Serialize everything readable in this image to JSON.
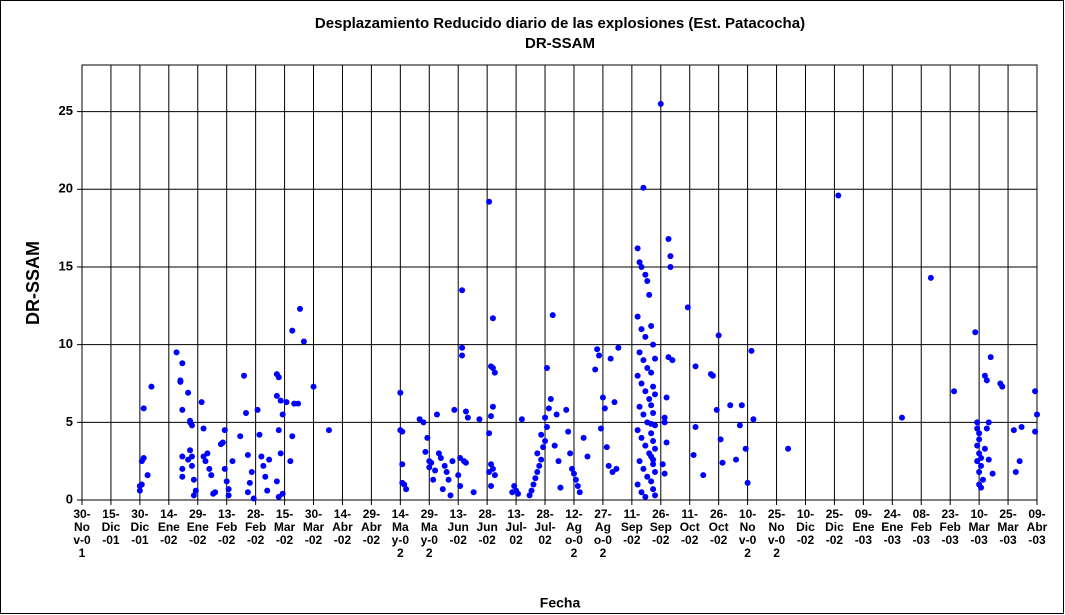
{
  "chart_data": {
    "type": "scatter",
    "title": "Desplazamiento Reducido diario de las explosiones (Est. Patacocha)",
    "subtitle": "DR-SSAM",
    "x_label": "Fecha",
    "y_label": "DR-SSAM",
    "xlim": [
      0,
      495
    ],
    "xticks": [
      {
        "value": 0,
        "label": "30-Nov-01"
      },
      {
        "value": 15,
        "label": "15-Dic-01"
      },
      {
        "value": 30,
        "label": "30-Dic-01"
      },
      {
        "value": 45,
        "label": "14-Ene-02"
      },
      {
        "value": 60,
        "label": "29-Ene-02"
      },
      {
        "value": 75,
        "label": "13-Feb-02"
      },
      {
        "value": 90,
        "label": "28-Feb-02"
      },
      {
        "value": 105,
        "label": "15-Mar-02"
      },
      {
        "value": 120,
        "label": "30-Mar-02"
      },
      {
        "value": 135,
        "label": "14-Abr-02"
      },
      {
        "value": 150,
        "label": "29-Abr-02"
      },
      {
        "value": 165,
        "label": "14-May-02"
      },
      {
        "value": 180,
        "label": "29-May-02"
      },
      {
        "value": 195,
        "label": "13-Jun-02"
      },
      {
        "value": 210,
        "label": "28-Jun-02"
      },
      {
        "value": 225,
        "label": "13-Jul-02"
      },
      {
        "value": 240,
        "label": "28-Jul-02"
      },
      {
        "value": 255,
        "label": "12-Ago-02"
      },
      {
        "value": 270,
        "label": "27-Ago-02"
      },
      {
        "value": 285,
        "label": "11-Sep-02"
      },
      {
        "value": 300,
        "label": "26-Sep-02"
      },
      {
        "value": 315,
        "label": "11-Oct-02"
      },
      {
        "value": 330,
        "label": "26-Oct-02"
      },
      {
        "value": 345,
        "label": "10-Nov-02"
      },
      {
        "value": 360,
        "label": "25-Nov-02"
      },
      {
        "value": 375,
        "label": "10-Dic-02"
      },
      {
        "value": 390,
        "label": "25-Dic-02"
      },
      {
        "value": 405,
        "label": "09-Ene-03"
      },
      {
        "value": 420,
        "label": "24-Ene-03"
      },
      {
        "value": 435,
        "label": "08-Feb-03"
      },
      {
        "value": 450,
        "label": "23-Feb-03"
      },
      {
        "value": 465,
        "label": "10-Mar-03"
      },
      {
        "value": 480,
        "label": "25-Mar-03"
      },
      {
        "value": 495,
        "label": "09-Abr-03"
      }
    ],
    "ylim": [
      0,
      28
    ],
    "yticks": [
      0,
      5,
      10,
      15,
      20,
      25
    ],
    "grid": true,
    "series": [
      {
        "color": "#0000ff",
        "x": [
          30,
          30,
          31,
          31,
          32,
          32,
          34,
          36,
          49,
          51,
          51,
          52,
          52,
          52,
          52,
          52,
          55,
          56,
          56,
          57,
          57,
          55,
          56,
          57,
          58,
          58,
          59,
          62,
          63,
          63,
          64,
          65,
          66,
          67,
          68,
          69,
          72,
          73,
          74,
          74,
          75,
          76,
          76,
          78,
          82,
          84,
          85,
          86,
          86,
          87,
          88,
          89,
          91,
          92,
          93,
          94,
          95,
          96,
          97,
          101,
          102,
          101,
          103,
          104,
          102,
          103,
          101,
          102,
          104,
          106,
          109,
          110,
          109,
          108,
          113,
          115,
          112,
          120,
          128,
          165,
          165,
          166,
          166,
          166,
          167,
          168,
          175,
          177,
          178,
          179,
          180,
          180,
          181,
          182,
          183,
          184,
          185,
          186,
          187,
          188,
          189,
          190,
          191,
          192,
          193,
          197,
          197,
          197,
          199,
          200,
          196,
          198,
          199,
          195,
          196,
          203,
          206,
          211,
          213,
          212,
          213,
          214,
          213,
          212,
          211,
          212,
          213,
          211,
          214,
          212,
          223,
          224,
          225,
          226,
          228,
          232,
          233,
          234,
          235,
          236,
          237,
          238,
          236,
          239,
          240,
          238,
          241,
          240,
          242,
          243,
          241,
          244,
          246,
          245,
          247,
          248,
          251,
          252,
          253,
          254,
          255,
          256,
          257,
          258,
          260,
          262,
          267,
          268,
          266,
          274,
          278,
          270,
          276,
          271,
          269,
          272,
          273,
          275,
          277,
          291,
          288,
          289,
          290,
          292,
          293,
          294,
          288,
          290,
          292,
          289,
          291,
          293,
          288,
          290,
          292,
          294,
          289,
          291,
          293,
          288,
          290,
          292,
          294,
          289,
          291,
          293,
          288,
          290,
          292,
          295,
          296,
          297,
          295,
          296,
          297,
          295,
          296,
          297,
          295,
          296,
          297,
          295,
          296,
          297,
          295,
          296,
          297,
          295,
          296,
          300,
          304,
          305,
          305,
          304,
          306,
          303,
          302,
          302,
          303,
          301,
          302,
          314,
          318,
          318,
          317,
          322,
          326,
          327,
          330,
          329,
          331,
          332,
          336,
          339,
          341,
          342,
          344,
          345,
          347,
          348,
          366,
          392,
          425,
          440,
          452,
          463,
          464,
          464,
          465,
          465,
          464,
          465,
          466,
          464,
          466,
          465,
          467,
          465,
          466,
          468,
          469,
          471,
          470,
          469,
          468,
          470,
          472,
          476,
          477,
          483,
          484,
          486,
          487,
          494,
          495,
          494
        ],
        "values": [
          0.6,
          0.9,
          1.0,
          2.5,
          2.7,
          5.9,
          1.6,
          7.3,
          9.5,
          7.7,
          7.6,
          8.8,
          5.8,
          2.8,
          2.0,
          1.5,
          6.9,
          5.0,
          5.1,
          4.8,
          2.8,
          2.6,
          3.2,
          2.2,
          1.3,
          0.3,
          0.6,
          6.3,
          4.6,
          2.8,
          2.5,
          3.0,
          2.0,
          1.6,
          0.4,
          0.5,
          3.6,
          3.7,
          4.5,
          2.0,
          1.2,
          0.3,
          0.7,
          2.5,
          4.1,
          8.0,
          5.6,
          2.9,
          0.5,
          1.1,
          1.8,
          0.1,
          5.8,
          4.2,
          2.8,
          2.2,
          1.5,
          0.6,
          2.6,
          8.1,
          7.9,
          6.7,
          6.4,
          5.5,
          4.5,
          3.0,
          1.2,
          0.2,
          0.4,
          6.3,
          10.9,
          6.2,
          4.1,
          2.5,
          12.3,
          10.2,
          6.2,
          7.3,
          4.5,
          6.9,
          4.5,
          4.4,
          2.3,
          1.1,
          1.0,
          0.7,
          5.2,
          5.0,
          3.1,
          4.0,
          2.5,
          2.1,
          2.4,
          1.3,
          1.9,
          5.5,
          3.0,
          2.7,
          0.7,
          2.2,
          1.8,
          1.3,
          0.3,
          2.5,
          5.8,
          13.5,
          9.8,
          9.3,
          5.7,
          5.3,
          2.7,
          2.5,
          2.4,
          1.6,
          0.9,
          0.5,
          5.2,
          19.2,
          11.7,
          8.6,
          8.5,
          8.2,
          6.0,
          5.4,
          4.3,
          2.3,
          2.0,
          1.8,
          1.6,
          0.9,
          0.5,
          0.9,
          0.6,
          0.4,
          5.2,
          0.3,
          0.6,
          1.0,
          1.4,
          1.8,
          2.2,
          2.6,
          3.0,
          3.4,
          3.8,
          4.2,
          4.7,
          5.3,
          5.9,
          6.5,
          8.5,
          11.9,
          5.5,
          3.5,
          2.5,
          0.8,
          5.8,
          4.4,
          3.0,
          2.0,
          1.7,
          1.3,
          0.9,
          0.5,
          4.0,
          2.8,
          9.7,
          9.3,
          8.4,
          9.1,
          9.8,
          6.6,
          6.3,
          5.9,
          4.6,
          3.4,
          2.2,
          1.8,
          2.0,
          20.1,
          16.2,
          15.3,
          15.0,
          14.5,
          14.1,
          13.2,
          11.8,
          11.0,
          10.5,
          9.5,
          9.0,
          8.5,
          8.0,
          7.5,
          7.0,
          6.5,
          6.0,
          5.5,
          5.0,
          4.5,
          4.0,
          3.5,
          3.0,
          2.5,
          2.0,
          1.5,
          1.0,
          0.5,
          0.2,
          11.2,
          10.0,
          9.1,
          8.2,
          7.3,
          6.8,
          6.1,
          5.6,
          4.8,
          4.3,
          3.8,
          3.3,
          2.8,
          2.3,
          1.8,
          1.2,
          0.7,
          0.3,
          4.9,
          2.6,
          25.5,
          16.8,
          15.7,
          15.0,
          9.2,
          9.0,
          6.6,
          5.3,
          5.0,
          3.7,
          2.3,
          1.7,
          12.4,
          8.6,
          4.7,
          2.9,
          1.6,
          8.1,
          8.0,
          10.6,
          5.8,
          3.9,
          2.4,
          6.1,
          2.6,
          4.8,
          6.1,
          3.3,
          1.1,
          9.6,
          5.2,
          3.3,
          19.6,
          5.3,
          14.3,
          7.0,
          10.8,
          5.0,
          4.6,
          4.3,
          3.9,
          3.5,
          3.0,
          2.7,
          2.5,
          2.2,
          1.8,
          1.3,
          1.0,
          0.8,
          8.0,
          7.7,
          9.2,
          5.0,
          4.6,
          3.3,
          2.6,
          1.7,
          7.5,
          7.3,
          4.5,
          1.8,
          2.5,
          4.7,
          7.0,
          5.5,
          4.4
        ]
      }
    ]
  }
}
